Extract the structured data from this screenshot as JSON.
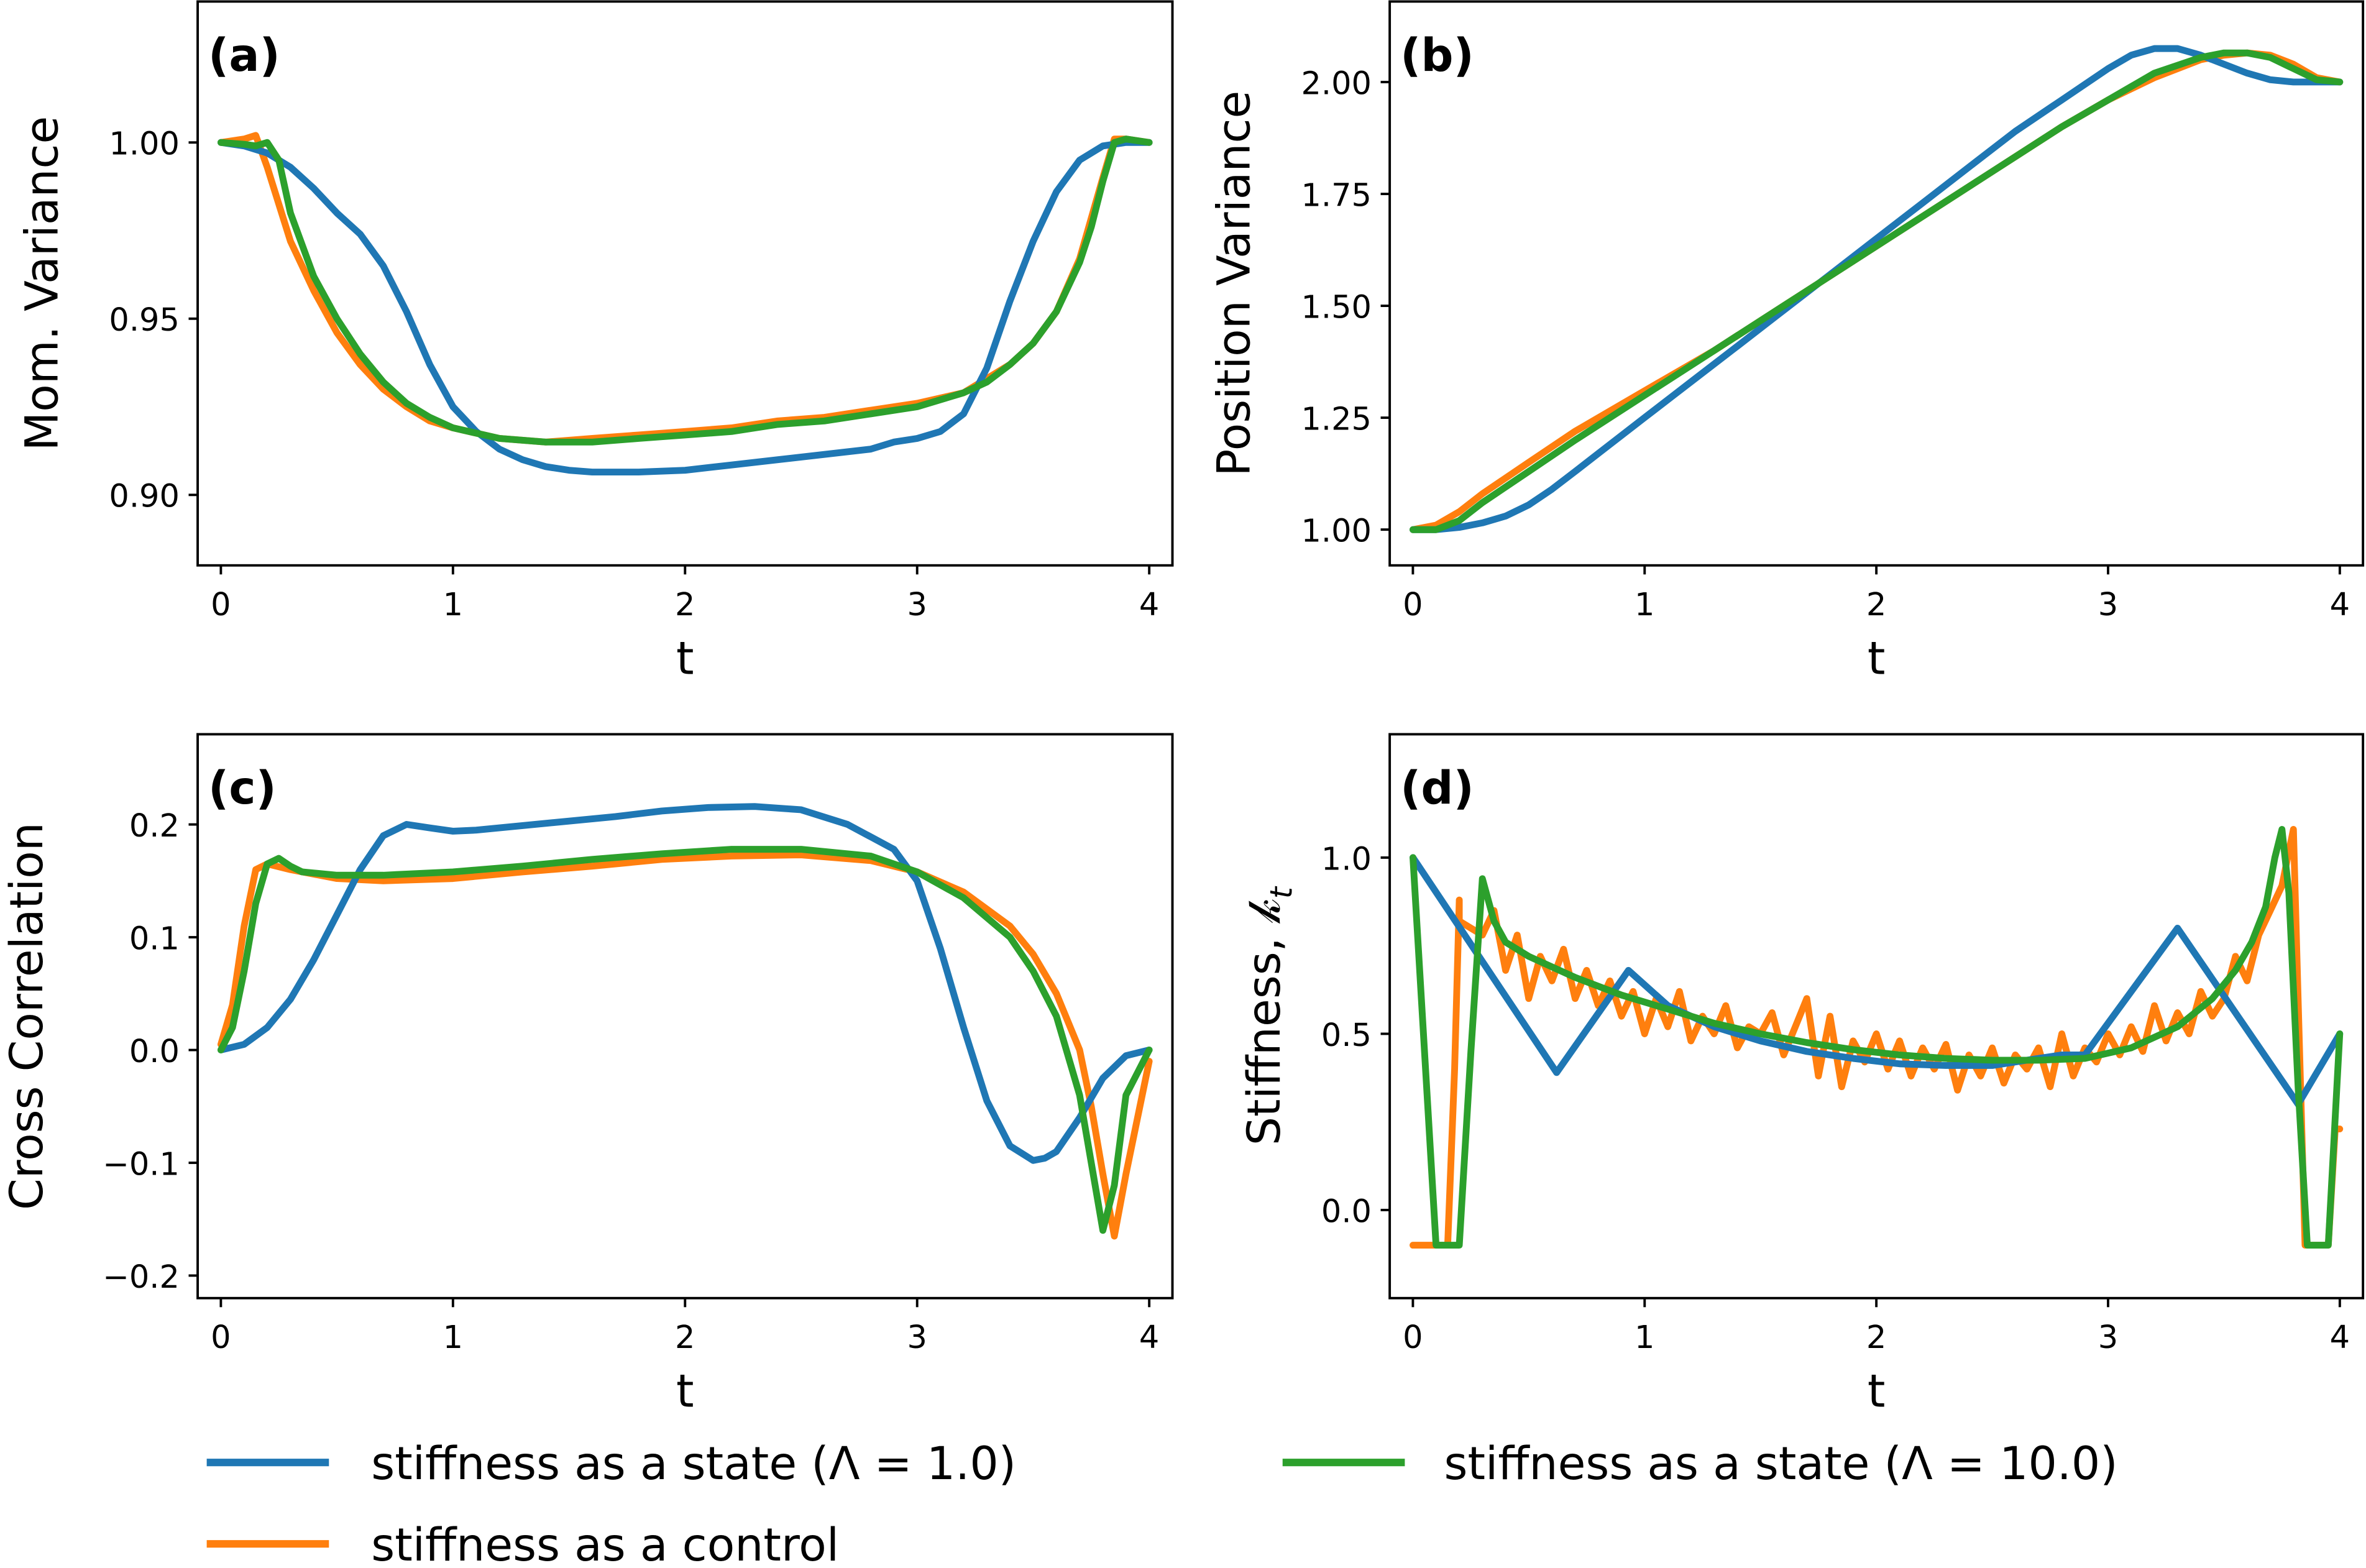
{
  "figure": {
    "legend": {
      "placement": "bottom",
      "entries": [
        {
          "key": "state1",
          "label": "stiffness as a state (Λ = 1.0)",
          "color": "#1f77b4"
        },
        {
          "key": "state10",
          "label": "stiffness as a state (Λ = 10.0)",
          "color": "#2ca02c"
        },
        {
          "key": "control",
          "label": "stiffness as a control",
          "color": "#ff7f0e"
        }
      ]
    }
  },
  "chart_data": [
    {
      "id": "a",
      "type": "line",
      "panel_tag": "(a)",
      "title": "",
      "xlabel": "t",
      "ylabel": "Mom. Variance",
      "xlim": [
        -0.1,
        4.1
      ],
      "ylim": [
        0.88,
        1.04
      ],
      "xticks": [
        0,
        1,
        2,
        3,
        4
      ],
      "xtick_labels": [
        "0",
        "1",
        "2",
        "3",
        "4"
      ],
      "yticks": [
        0.9,
        0.95,
        1.0
      ],
      "ytick_labels": [
        "0.90",
        "0.95",
        "1.00"
      ],
      "grid": false,
      "series": [
        {
          "key": "control",
          "name": "stiffness as a control",
          "x": [
            0,
            0.1,
            0.15,
            0.2,
            0.3,
            0.4,
            0.5,
            0.6,
            0.7,
            0.8,
            0.9,
            1.0,
            1.2,
            1.4,
            1.6,
            1.8,
            2.0,
            2.2,
            2.4,
            2.6,
            2.8,
            3.0,
            3.2,
            3.4,
            3.5,
            3.6,
            3.7,
            3.8,
            3.85,
            3.9,
            4.0
          ],
          "y": [
            1.0,
            1.001,
            1.002,
            0.993,
            0.972,
            0.958,
            0.946,
            0.937,
            0.93,
            0.925,
            0.921,
            0.919,
            0.916,
            0.915,
            0.916,
            0.917,
            0.918,
            0.919,
            0.921,
            0.922,
            0.924,
            0.926,
            0.929,
            0.937,
            0.943,
            0.952,
            0.967,
            0.99,
            1.001,
            1.001,
            1.0
          ]
        },
        {
          "key": "state1",
          "name": "stiffness as a state (Λ = 1.0)",
          "x": [
            0,
            0.1,
            0.2,
            0.3,
            0.4,
            0.5,
            0.6,
            0.7,
            0.8,
            0.9,
            1.0,
            1.1,
            1.2,
            1.3,
            1.4,
            1.5,
            1.6,
            1.7,
            1.8,
            2.0,
            2.2,
            2.4,
            2.6,
            2.8,
            2.9,
            3.0,
            3.1,
            3.2,
            3.3,
            3.4,
            3.5,
            3.6,
            3.7,
            3.8,
            3.9,
            4.0
          ],
          "y": [
            1.0,
            0.999,
            0.997,
            0.993,
            0.987,
            0.98,
            0.974,
            0.965,
            0.952,
            0.937,
            0.925,
            0.918,
            0.913,
            0.91,
            0.908,
            0.907,
            0.9065,
            0.9065,
            0.9065,
            0.907,
            0.9085,
            0.91,
            0.9115,
            0.913,
            0.915,
            0.916,
            0.918,
            0.923,
            0.936,
            0.955,
            0.972,
            0.986,
            0.995,
            0.999,
            1.0,
            1.0
          ]
        },
        {
          "key": "state10",
          "name": "stiffness as a state (Λ = 10.0)",
          "x": [
            0,
            0.1,
            0.15,
            0.2,
            0.25,
            0.3,
            0.4,
            0.5,
            0.6,
            0.7,
            0.8,
            0.9,
            1.0,
            1.2,
            1.4,
            1.6,
            1.8,
            2.0,
            2.2,
            2.4,
            2.6,
            2.8,
            3.0,
            3.2,
            3.3,
            3.4,
            3.5,
            3.6,
            3.7,
            3.75,
            3.8,
            3.85,
            3.9,
            4.0
          ],
          "y": [
            1.0,
            0.9995,
            0.999,
            1.0,
            0.995,
            0.98,
            0.962,
            0.95,
            0.94,
            0.932,
            0.926,
            0.922,
            0.919,
            0.916,
            0.915,
            0.915,
            0.916,
            0.917,
            0.918,
            0.92,
            0.921,
            0.923,
            0.925,
            0.929,
            0.932,
            0.937,
            0.943,
            0.952,
            0.966,
            0.976,
            0.989,
            1.0,
            1.001,
            1.0
          ]
        }
      ]
    },
    {
      "id": "b",
      "type": "line",
      "panel_tag": "(b)",
      "title": "",
      "xlabel": "t",
      "ylabel": "Position Variance",
      "xlim": [
        -0.1,
        4.1
      ],
      "ylim": [
        0.92,
        2.18
      ],
      "xticks": [
        0,
        1,
        2,
        3,
        4
      ],
      "xtick_labels": [
        "0",
        "1",
        "2",
        "3",
        "4"
      ],
      "yticks": [
        1.0,
        1.25,
        1.5,
        1.75,
        2.0
      ],
      "ytick_labels": [
        "1.00",
        "1.25",
        "1.50",
        "1.75",
        "2.00"
      ],
      "grid": false,
      "series": [
        {
          "key": "control",
          "name": "stiffness as a control",
          "x": [
            0,
            0.1,
            0.2,
            0.3,
            0.5,
            0.7,
            1.0,
            1.3,
            1.6,
            1.9,
            2.2,
            2.5,
            2.8,
            3.0,
            3.2,
            3.4,
            3.5,
            3.6,
            3.7,
            3.8,
            3.9,
            4.0
          ],
          "y": [
            1.0,
            1.01,
            1.04,
            1.08,
            1.15,
            1.22,
            1.31,
            1.4,
            1.5,
            1.6,
            1.7,
            1.8,
            1.9,
            1.96,
            2.01,
            2.05,
            2.06,
            2.065,
            2.06,
            2.04,
            2.01,
            2.0
          ]
        },
        {
          "key": "state1",
          "name": "stiffness as a state (Λ = 1.0)",
          "x": [
            0,
            0.1,
            0.2,
            0.3,
            0.4,
            0.5,
            0.6,
            0.7,
            0.8,
            1.0,
            1.2,
            1.4,
            1.6,
            1.8,
            2.0,
            2.2,
            2.4,
            2.6,
            2.8,
            3.0,
            3.1,
            3.2,
            3.3,
            3.4,
            3.5,
            3.6,
            3.7,
            3.8,
            3.9,
            4.0
          ],
          "y": [
            1.0,
            1.0,
            1.005,
            1.015,
            1.03,
            1.055,
            1.09,
            1.13,
            1.17,
            1.25,
            1.33,
            1.41,
            1.49,
            1.57,
            1.65,
            1.73,
            1.81,
            1.89,
            1.96,
            2.03,
            2.06,
            2.075,
            2.075,
            2.06,
            2.04,
            2.02,
            2.005,
            2.0,
            2.0,
            2.0
          ]
        },
        {
          "key": "state10",
          "name": "stiffness as a state (Λ = 10.0)",
          "x": [
            0,
            0.1,
            0.2,
            0.3,
            0.5,
            0.7,
            1.0,
            1.3,
            1.6,
            1.9,
            2.2,
            2.5,
            2.8,
            3.0,
            3.2,
            3.4,
            3.5,
            3.6,
            3.7,
            3.8,
            3.9,
            4.0
          ],
          "y": [
            1.0,
            1.0,
            1.02,
            1.06,
            1.13,
            1.2,
            1.3,
            1.4,
            1.5,
            1.6,
            1.7,
            1.8,
            1.9,
            1.96,
            2.02,
            2.055,
            2.065,
            2.065,
            2.055,
            2.03,
            2.005,
            2.0
          ]
        }
      ]
    },
    {
      "id": "c",
      "type": "line",
      "panel_tag": "(c)",
      "title": "",
      "xlabel": "t",
      "ylabel": "Cross Correlation",
      "xlim": [
        -0.1,
        4.1
      ],
      "ylim": [
        -0.22,
        0.28
      ],
      "xticks": [
        0,
        1,
        2,
        3,
        4
      ],
      "xtick_labels": [
        "0",
        "1",
        "2",
        "3",
        "4"
      ],
      "yticks": [
        -0.2,
        -0.1,
        0.0,
        0.1,
        0.2
      ],
      "ytick_labels": [
        "−0.2",
        "−0.1",
        "0.0",
        "0.1",
        "0.2"
      ],
      "grid": false,
      "series": [
        {
          "key": "control",
          "name": "stiffness as a control",
          "x": [
            0,
            0.05,
            0.1,
            0.15,
            0.2,
            0.3,
            0.5,
            0.7,
            1.0,
            1.3,
            1.6,
            1.9,
            2.2,
            2.5,
            2.8,
            3.0,
            3.2,
            3.4,
            3.5,
            3.6,
            3.7,
            3.75,
            3.8,
            3.85,
            3.9,
            4.0
          ],
          "y": [
            0.005,
            0.04,
            0.11,
            0.16,
            0.165,
            0.16,
            0.152,
            0.15,
            0.152,
            0.158,
            0.163,
            0.169,
            0.172,
            0.173,
            0.168,
            0.158,
            0.14,
            0.11,
            0.085,
            0.05,
            0.0,
            -0.05,
            -0.11,
            -0.165,
            -0.11,
            -0.01
          ]
        },
        {
          "key": "state1",
          "name": "stiffness as a state (Λ = 1.0)",
          "x": [
            0,
            0.1,
            0.2,
            0.3,
            0.4,
            0.5,
            0.6,
            0.7,
            0.8,
            0.9,
            1.0,
            1.1,
            1.3,
            1.5,
            1.7,
            1.9,
            2.1,
            2.3,
            2.5,
            2.7,
            2.9,
            3.0,
            3.1,
            3.2,
            3.3,
            3.4,
            3.5,
            3.55,
            3.6,
            3.7,
            3.8,
            3.9,
            4.0
          ],
          "y": [
            0.0,
            0.005,
            0.02,
            0.045,
            0.08,
            0.12,
            0.16,
            0.19,
            0.2,
            0.197,
            0.194,
            0.195,
            0.199,
            0.203,
            0.207,
            0.212,
            0.215,
            0.216,
            0.213,
            0.2,
            0.178,
            0.15,
            0.09,
            0.02,
            -0.045,
            -0.085,
            -0.098,
            -0.096,
            -0.09,
            -0.06,
            -0.025,
            -0.005,
            0.0
          ]
        },
        {
          "key": "state10",
          "name": "stiffness as a state (Λ = 10.0)",
          "x": [
            0,
            0.05,
            0.1,
            0.15,
            0.2,
            0.25,
            0.3,
            0.35,
            0.5,
            0.7,
            1.0,
            1.3,
            1.6,
            1.9,
            2.2,
            2.5,
            2.8,
            3.0,
            3.2,
            3.4,
            3.5,
            3.6,
            3.7,
            3.75,
            3.8,
            3.85,
            3.9,
            4.0
          ],
          "y": [
            0.0,
            0.02,
            0.07,
            0.13,
            0.165,
            0.17,
            0.163,
            0.158,
            0.155,
            0.155,
            0.158,
            0.163,
            0.169,
            0.174,
            0.178,
            0.178,
            0.172,
            0.158,
            0.135,
            0.1,
            0.07,
            0.03,
            -0.04,
            -0.1,
            -0.16,
            -0.12,
            -0.04,
            0.0
          ]
        }
      ]
    },
    {
      "id": "d",
      "type": "line",
      "panel_tag": "(d)",
      "title": "",
      "xlabel": "t",
      "ylabel": "Stiffness, 𝓀",
      "ylabel_subscript": "t",
      "xlim": [
        -0.1,
        4.1
      ],
      "ylim": [
        -0.25,
        1.35
      ],
      "xticks": [
        0,
        1,
        2,
        3,
        4
      ],
      "xtick_labels": [
        "0",
        "1",
        "2",
        "3",
        "4"
      ],
      "yticks": [
        0.0,
        0.5,
        1.0
      ],
      "ytick_labels": [
        "0.0",
        "0.5",
        "1.0"
      ],
      "grid": false,
      "series": [
        {
          "key": "control",
          "name": "stiffness as a control",
          "x": [
            0,
            0.15,
            0.18,
            0.2,
            0.2,
            0.25,
            0.3,
            0.35,
            0.4,
            0.45,
            0.5,
            0.55,
            0.6,
            0.65,
            0.7,
            0.75,
            0.8,
            0.85,
            0.9,
            0.95,
            1.0,
            1.05,
            1.1,
            1.15,
            1.2,
            1.25,
            1.3,
            1.35,
            1.4,
            1.45,
            1.5,
            1.55,
            1.6,
            1.65,
            1.7,
            1.75,
            1.8,
            1.85,
            1.9,
            1.95,
            2.0,
            2.05,
            2.1,
            2.15,
            2.2,
            2.25,
            2.3,
            2.35,
            2.4,
            2.45,
            2.5,
            2.55,
            2.6,
            2.65,
            2.7,
            2.75,
            2.8,
            2.85,
            2.9,
            2.95,
            3.0,
            3.05,
            3.1,
            3.15,
            3.2,
            3.25,
            3.3,
            3.35,
            3.4,
            3.45,
            3.5,
            3.55,
            3.6,
            3.65,
            3.7,
            3.75,
            3.8,
            3.82,
            3.85,
            3.9,
            3.95,
            3.98,
            4.0
          ],
          "y": [
            -0.1,
            -0.1,
            0.4,
            0.88,
            0.82,
            0.8,
            0.78,
            0.85,
            0.68,
            0.78,
            0.6,
            0.72,
            0.65,
            0.74,
            0.6,
            0.68,
            0.58,
            0.65,
            0.55,
            0.62,
            0.5,
            0.6,
            0.52,
            0.62,
            0.48,
            0.55,
            0.5,
            0.58,
            0.46,
            0.52,
            0.5,
            0.56,
            0.44,
            0.52,
            0.6,
            0.38,
            0.55,
            0.35,
            0.48,
            0.42,
            0.5,
            0.4,
            0.48,
            0.38,
            0.46,
            0.4,
            0.47,
            0.34,
            0.44,
            0.38,
            0.46,
            0.36,
            0.44,
            0.4,
            0.46,
            0.35,
            0.5,
            0.38,
            0.46,
            0.42,
            0.5,
            0.44,
            0.52,
            0.45,
            0.58,
            0.48,
            0.56,
            0.5,
            0.62,
            0.55,
            0.6,
            0.72,
            0.65,
            0.78,
            0.85,
            0.92,
            1.08,
            0.6,
            -0.1,
            -0.1,
            -0.1,
            0.23,
            0.23
          ]
        },
        {
          "key": "state1",
          "name": "stiffness as a state (Λ = 1.0)",
          "x": [
            0,
            0.62,
            0.93,
            1.1,
            1.3,
            1.5,
            1.7,
            1.9,
            2.1,
            2.3,
            2.5,
            2.7,
            2.8,
            2.9,
            3.3,
            3.82,
            4.0
          ],
          "y": [
            1.0,
            0.39,
            0.68,
            0.58,
            0.52,
            0.48,
            0.45,
            0.43,
            0.415,
            0.41,
            0.41,
            0.43,
            0.44,
            0.44,
            0.8,
            0.3,
            0.5
          ]
        },
        {
          "key": "state10",
          "name": "stiffness as a state (Λ = 10.0)",
          "x": [
            0,
            0.1,
            0.15,
            0.2,
            0.25,
            0.3,
            0.35,
            0.4,
            0.5,
            0.7,
            0.9,
            1.1,
            1.3,
            1.5,
            1.7,
            1.9,
            2.1,
            2.3,
            2.5,
            2.7,
            2.9,
            3.1,
            3.3,
            3.45,
            3.55,
            3.62,
            3.68,
            3.72,
            3.75,
            3.78,
            3.82,
            3.86,
            3.9,
            3.95,
            4.0
          ],
          "y": [
            1.0,
            -0.1,
            -0.1,
            -0.1,
            0.45,
            0.94,
            0.82,
            0.76,
            0.72,
            0.66,
            0.61,
            0.57,
            0.53,
            0.5,
            0.475,
            0.455,
            0.44,
            0.43,
            0.425,
            0.425,
            0.43,
            0.46,
            0.52,
            0.6,
            0.68,
            0.76,
            0.86,
            1.0,
            1.08,
            0.9,
            0.35,
            -0.1,
            -0.1,
            -0.1,
            0.5
          ]
        }
      ]
    }
  ]
}
